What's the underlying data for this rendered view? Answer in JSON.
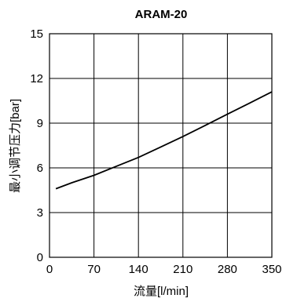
{
  "chart_data": {
    "type": "line",
    "title": "ARAM-20",
    "xlabel": "流量[l/min]",
    "ylabel": "最小调节压力[bar]",
    "xlim": [
      0,
      350
    ],
    "ylim": [
      0,
      15
    ],
    "x_ticks": [
      0,
      70,
      140,
      210,
      280,
      350
    ],
    "y_ticks": [
      0,
      3,
      6,
      9,
      12,
      15
    ],
    "grid": true,
    "series": [
      {
        "x": [
          10,
          35,
          70,
          105,
          140,
          175,
          210,
          245,
          280,
          315,
          350
        ],
        "y": [
          4.6,
          5.0,
          5.5,
          6.1,
          6.7,
          7.4,
          8.1,
          8.85,
          9.6,
          10.35,
          11.1
        ]
      }
    ]
  }
}
